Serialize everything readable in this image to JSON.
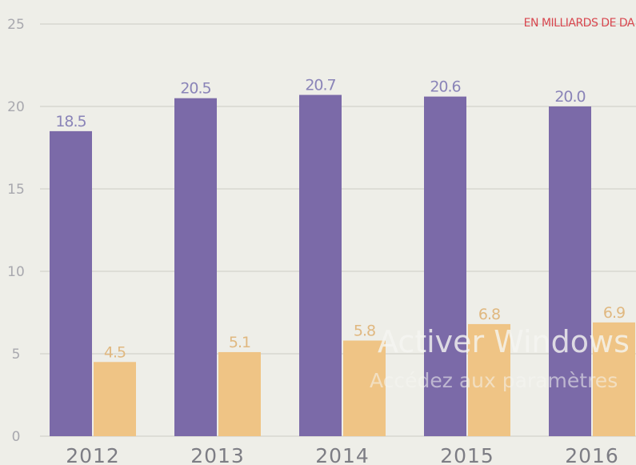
{
  "chart_data": {
    "type": "bar",
    "title": "",
    "unit_label": "EN MILLIARDS DE DA",
    "xlabel": "",
    "ylabel": "",
    "ylim": [
      0,
      25
    ],
    "yticks": [
      "0",
      "5",
      "10",
      "15",
      "20",
      "25"
    ],
    "categories": [
      "2012",
      "2013",
      "2014",
      "2015",
      "2016"
    ],
    "series": [
      {
        "values": [
          18.5,
          20.5,
          20.7,
          20.6,
          20.0
        ],
        "labels": [
          "18.5",
          "20.5",
          "20.7",
          "20.6",
          "20.0"
        ],
        "color": "#7b6aa8",
        "label_color": "#8a84b8"
      },
      {
        "values": [
          4.5,
          5.1,
          5.8,
          6.8,
          6.9
        ],
        "labels": [
          "4.5",
          "5.1",
          "5.8",
          "6.8",
          "6.9"
        ],
        "color": "#efc485",
        "label_color": "#e0b880"
      }
    ],
    "grid": true,
    "colors": {
      "background": "#eeeee8",
      "gridline": "#d7d7cf",
      "unit_label": "#d8474f"
    }
  },
  "overlay": {
    "line1": "Activer Windows",
    "line2": "Accédez aux paramètres"
  }
}
